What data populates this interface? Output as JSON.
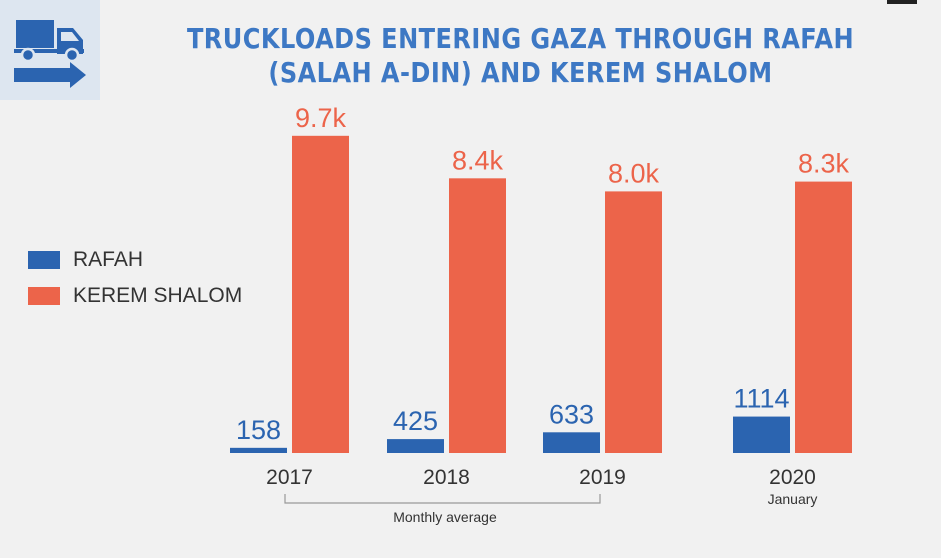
{
  "colors": {
    "rafah": "#2b64b0",
    "kerem_shalom": "#ec644a",
    "title": "#3d78c4",
    "axis_text": "#333333",
    "icon": "#2b64b0"
  },
  "icons": {
    "header_icon": "truck-arrow-icon"
  },
  "chart_data": {
    "type": "bar",
    "title_lines": [
      "TRUCKLOADS ENTERING GAZA THROUGH RAFAH",
      "(SALAH A-DIN) AND KEREM SHALOM"
    ],
    "categories": [
      "2017",
      "2018",
      "2019",
      "2020"
    ],
    "category_sublabels": [
      "",
      "",
      "",
      "January"
    ],
    "group_annotation": "Monthly average",
    "legend_position": "left",
    "grid": false,
    "ylim": [
      0,
      10000
    ],
    "series": [
      {
        "name": "RAFAH",
        "values": [
          158,
          425,
          633,
          1114
        ],
        "labels": [
          "158",
          "425",
          "633",
          "1114"
        ]
      },
      {
        "name": "KEREM SHALOM",
        "values": [
          9700,
          8400,
          8000,
          8300
        ],
        "labels": [
          "9.7k",
          "8.4k",
          "8.0k",
          "8.3k"
        ]
      }
    ]
  }
}
